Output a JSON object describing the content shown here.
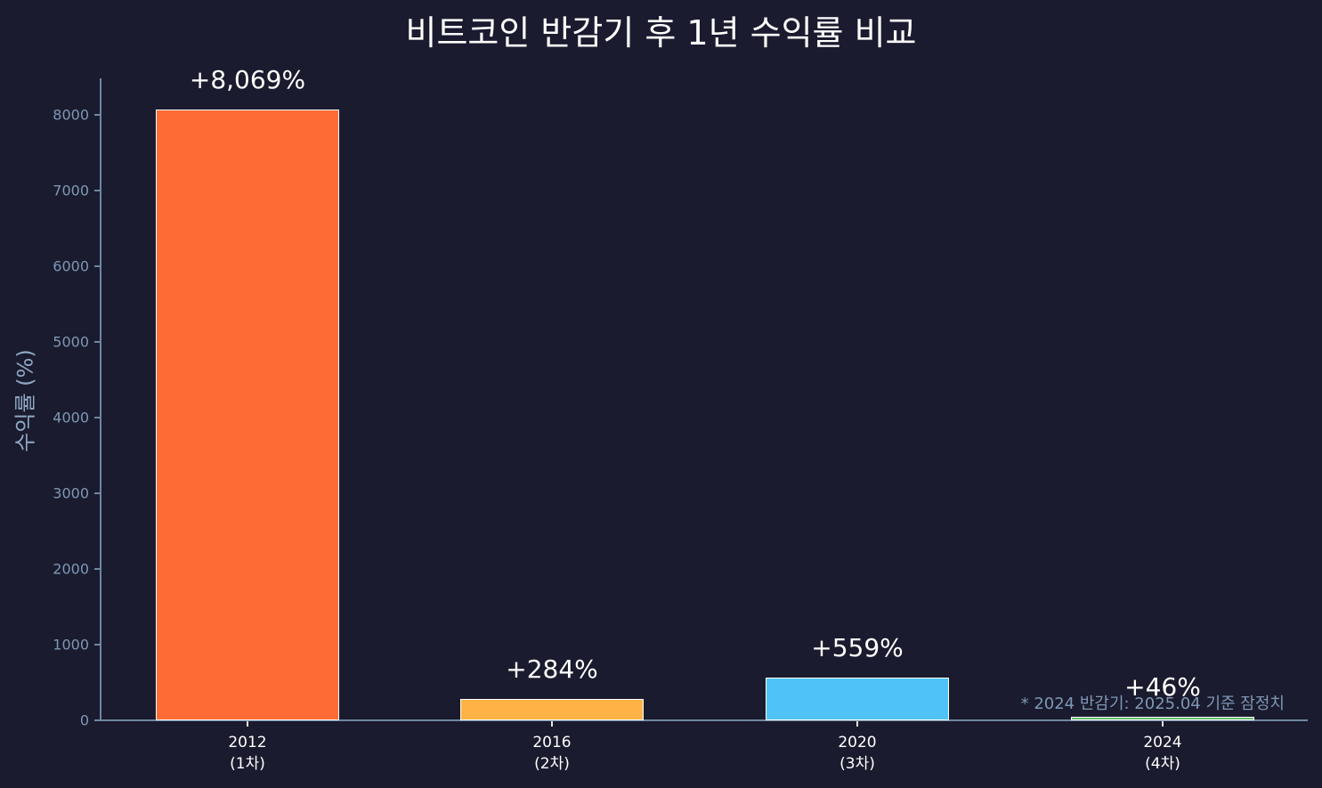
{
  "chart_data": {
    "type": "bar",
    "title": "비트코인 반감기 후 1년 수익률 비교",
    "xlabel": "",
    "ylabel": "수익률 (%)",
    "ylim": [
      0,
      8470
    ],
    "yticks": [
      "0",
      "1000",
      "2000",
      "3000",
      "4000",
      "5000",
      "6000",
      "7000",
      "8000"
    ],
    "categories": [
      "2012\n(1차)",
      "2016\n(2차)",
      "2020\n(3차)",
      "2024\n(4차)"
    ],
    "category_years": [
      "2012",
      "2016",
      "2020",
      "2024"
    ],
    "category_rounds": [
      "(1차)",
      "(2차)",
      "(3차)",
      "(4차)"
    ],
    "values": [
      8069,
      284,
      559,
      46
    ],
    "value_labels": [
      "+8,069%",
      "+284%",
      "+559%",
      "+46%"
    ],
    "colors": [
      "#ff6b35",
      "#ffb347",
      "#4fc3f7",
      "#66bb6a"
    ],
    "grid": false,
    "legend": null,
    "annotation": "* 2024 반감기: 2025.04 기준 잠정치"
  },
  "theme": {
    "background": "#1a1b2e",
    "axis_color": "#6f87a3",
    "tick_label_color": "#7f97b4"
  }
}
